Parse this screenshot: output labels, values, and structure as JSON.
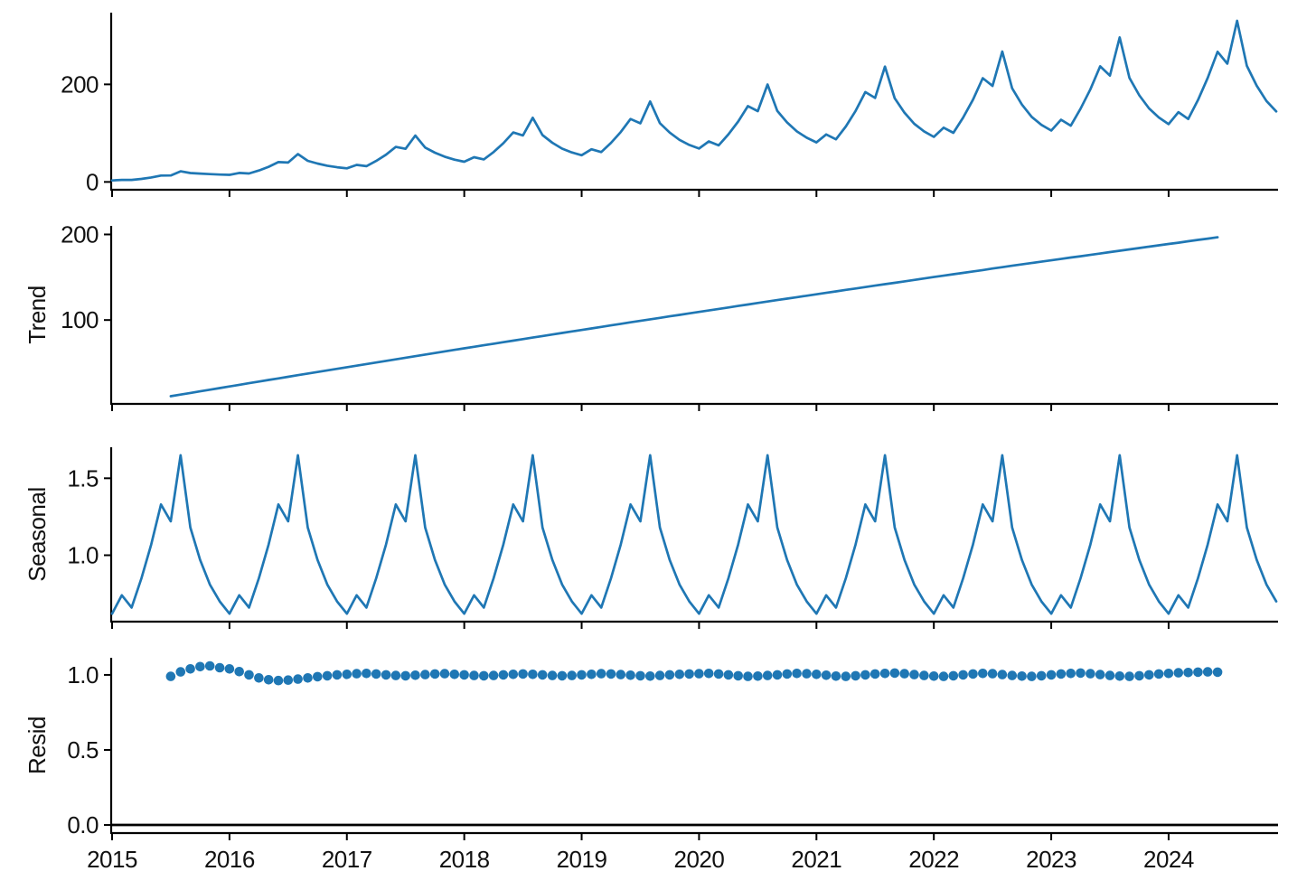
{
  "chart_data": {
    "type": "line",
    "title": "",
    "description": "Seasonal decomposition: observed, trend, seasonal, residual panels",
    "x": {
      "freq": "monthly",
      "start": "2015-01",
      "end": "2024-12",
      "n_months": 120,
      "tick_labels": [
        "2015",
        "2016",
        "2017",
        "2018",
        "2019",
        "2020",
        "2021",
        "2022",
        "2023",
        "2024"
      ]
    },
    "style": {
      "series_color": "#1f77b4",
      "axis_color": "#000000",
      "text_color": "#111111",
      "background": "#ffffff"
    },
    "panels": [
      {
        "name": "observed",
        "ylabel": "",
        "type": "line",
        "ylim": [
          -16,
          347
        ],
        "ytick_labels": [
          "0",
          "200"
        ],
        "ytick_values": [
          0,
          200
        ],
        "start_month_index": 0,
        "values": [
          3.0,
          4.1,
          4.2,
          6.3,
          9.2,
          13.0,
          13.3,
          21.7,
          18.2,
          17.1,
          16.0,
          15.1,
          14.5,
          18.4,
          17.3,
          23.4,
          31.0,
          40.7,
          39.7,
          57.1,
          43.3,
          37.7,
          33.2,
          30.1,
          27.9,
          34.9,
          32.4,
          43.1,
          55.9,
          71.7,
          67.9,
          95.2,
          70.5,
          60.0,
          51.7,
          45.7,
          41.5,
          50.6,
          46.3,
          61.2,
          79.3,
          101.4,
          95.4,
          131.7,
          96.0,
          80.3,
          68.3,
          60.4,
          54.8,
          67.0,
          61.2,
          80.2,
          102.4,
          129.1,
          120.1,
          165.0,
          120.5,
          101.2,
          86.2,
          75.9,
          68.4,
          83.1,
          75.0,
          97.5,
          123.8,
          155.5,
          145.1,
          199.8,
          145.5,
          122.0,
          103.6,
          90.6,
          81.0,
          97.3,
          87.4,
          113.7,
          145.5,
          184.2,
          172.1,
          236.4,
          171.4,
          142.0,
          119.2,
          103.6,
          92.4,
          111.2,
          100.7,
          131.9,
          168.7,
          212.8,
          196.8,
          267.3,
          191.9,
          158.7,
          133.5,
          117.0,
          105.3,
          127.6,
          115.3,
          150.2,
          190.0,
          236.9,
          217.9,
          296.2,
          213.2,
          177.5,
          150.7,
          132.1,
          118.5,
          143.1,
          129.0,
          167.8,
          213.3,
          266.8,
          242.3,
          330.3,
          238.0,
          197.1,
          165.9,
          144.5
        ]
      },
      {
        "name": "trend",
        "ylabel": "Trend",
        "type": "line",
        "ylim": [
          2,
          210
        ],
        "ytick_labels": [
          "100",
          "200"
        ],
        "ytick_values": [
          100,
          200
        ],
        "start_month_index": 6,
        "values": [
          11.0,
          12.9,
          14.8,
          16.7,
          18.6,
          20.5,
          22.4,
          24.3,
          26.2,
          28.1,
          30.0,
          31.8,
          33.7,
          35.6,
          37.5,
          39.3,
          41.2,
          43.0,
          44.9,
          46.7,
          48.6,
          50.4,
          52.3,
          54.1,
          56.0,
          57.8,
          59.6,
          61.4,
          63.3,
          65.1,
          66.9,
          68.7,
          70.5,
          72.3,
          74.1,
          75.9,
          77.7,
          79.5,
          81.3,
          83.1,
          84.9,
          86.7,
          88.4,
          90.2,
          92.0,
          93.7,
          95.5,
          97.3,
          99.0,
          100.8,
          102.5,
          104.3,
          106.0,
          107.8,
          109.5,
          111.2,
          113.0,
          114.7,
          116.4,
          118.1,
          119.9,
          121.6,
          123.3,
          125.0,
          126.7,
          128.4,
          130.1,
          131.8,
          133.5,
          135.2,
          136.8,
          138.5,
          140.2,
          141.9,
          143.5,
          145.2,
          146.9,
          148.5,
          150.2,
          151.8,
          153.5,
          155.1,
          156.8,
          158.4,
          160.2,
          161.8,
          163.4,
          165.0,
          166.6,
          168.2,
          169.8,
          171.4,
          173.0,
          174.5,
          176.1,
          177.7,
          179.4,
          181.0,
          182.6,
          184.1,
          185.7,
          187.3,
          188.9,
          190.4,
          192.0,
          193.6,
          195.1,
          196.7
        ]
      },
      {
        "name": "seasonal",
        "ylabel": "Seasonal",
        "type": "line",
        "ylim": [
          0.5685,
          1.7015
        ],
        "ytick_labels": [
          "1.0",
          "1.5"
        ],
        "ytick_values": [
          1.0,
          1.5
        ],
        "start_month_index": 0,
        "values_cycle": [
          0.62,
          0.74,
          0.66,
          0.85,
          1.07,
          1.33,
          1.22,
          1.65,
          1.18,
          0.97,
          0.81,
          0.7
        ],
        "n_points": 120
      },
      {
        "name": "resid",
        "ylabel": "Resid",
        "type": "scatter",
        "ylim": [
          -0.054,
          1.114
        ],
        "ytick_labels": [
          "0.0",
          "0.5",
          "1.0"
        ],
        "ytick_values": [
          0,
          0.5,
          1.0
        ],
        "start_month_index": 6,
        "hline": 0,
        "values": [
          0.99,
          1.02,
          1.04,
          1.055,
          1.06,
          1.048,
          1.04,
          1.022,
          1.0,
          0.98,
          0.968,
          0.962,
          0.965,
          0.972,
          0.98,
          0.988,
          0.994,
          1.0,
          1.004,
          1.008,
          1.01,
          1.006,
          1.0,
          0.996,
          0.994,
          0.998,
          1.002,
          1.006,
          1.008,
          1.004,
          1.0,
          0.996,
          0.994,
          0.996,
          1.0,
          1.004,
          1.006,
          1.004,
          1.0,
          0.996,
          0.994,
          0.996,
          1.0,
          1.004,
          1.008,
          1.006,
          1.002,
          0.998,
          0.994,
          0.992,
          0.996,
          1.0,
          1.004,
          1.006,
          1.008,
          1.01,
          1.006,
          1.0,
          0.994,
          0.99,
          0.992,
          0.996,
          1.0,
          1.006,
          1.01,
          1.008,
          1.004,
          0.998,
          0.992,
          0.99,
          0.994,
          1.0,
          1.006,
          1.01,
          1.012,
          1.008,
          1.002,
          0.996,
          0.992,
          0.99,
          0.994,
          1.0,
          1.006,
          1.01,
          1.008,
          1.002,
          0.996,
          0.992,
          0.99,
          0.994,
          1.0,
          1.006,
          1.01,
          1.012,
          1.008,
          1.002,
          0.996,
          0.992,
          0.99,
          0.994,
          1.0,
          1.006,
          1.01,
          1.014,
          1.016,
          1.018,
          1.02,
          1.018
        ]
      }
    ]
  }
}
